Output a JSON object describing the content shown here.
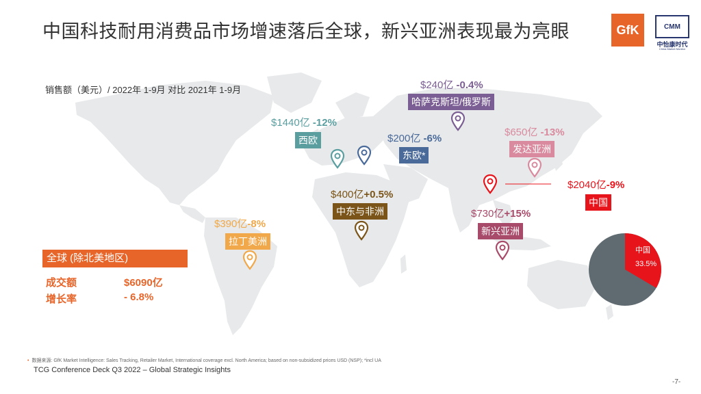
{
  "title": "中国科技耐用消费品市场增速落后全球，新兴亚洲表现最为亮眼",
  "logos": {
    "gfk": "GfK",
    "cmm": "CMM",
    "cmm_cn": "中怡康时代",
    "cmm_en": "China Market Monitor"
  },
  "subtitle": "销售额（美元）/ 2022年 1-9月 对比 2021年 1-9月",
  "regions": [
    {
      "name": "西欧",
      "amount": "$1440亿",
      "growth": "-12%",
      "color": "#5b9ea0"
    },
    {
      "name": "哈萨克斯坦/俄罗斯",
      "amount": "$240亿",
      "growth": "-0.4%",
      "color": "#7b5e93"
    },
    {
      "name": "东欧*",
      "amount": "$200亿",
      "growth": "-6%",
      "color": "#4a6a9a"
    },
    {
      "name": "发达亚洲",
      "amount": "$650亿",
      "growth": "-13%",
      "color": "#d98a9e"
    },
    {
      "name": "中国",
      "amount": "$2040亿",
      "growth": "-9%",
      "color": "#e8141b"
    },
    {
      "name": "中东与非洲",
      "amount": "$400亿",
      "growth": "+0.5%",
      "color": "#7a5418"
    },
    {
      "name": "新兴亚洲",
      "amount": "$730亿",
      "growth": "+15%",
      "color": "#a84a6a"
    },
    {
      "name": "拉丁美洲",
      "amount": "$390亿",
      "growth": "-8%",
      "color": "#f0a84a"
    }
  ],
  "global": {
    "header": "全球 (除北美地区)",
    "sales_label": "成交额",
    "sales_value": "$6090亿",
    "growth_label": "增长率",
    "growth_value": "- 6.8%"
  },
  "pie": {
    "china_label": "中国",
    "china_share": "33.5%",
    "china_fraction": 0.335,
    "china_color": "#e8141b",
    "rest_color": "#5f6b71"
  },
  "footnote": "数据来源: GfK Market Intelligence: Sales Tracking, Retailer Market, International coverage excl. North America; based on non-subsidized prices USD (NSP); *incl UA",
  "deck": "TCG Conference Deck Q3 2022 – Global Strategic Insights",
  "page": "-7-"
}
